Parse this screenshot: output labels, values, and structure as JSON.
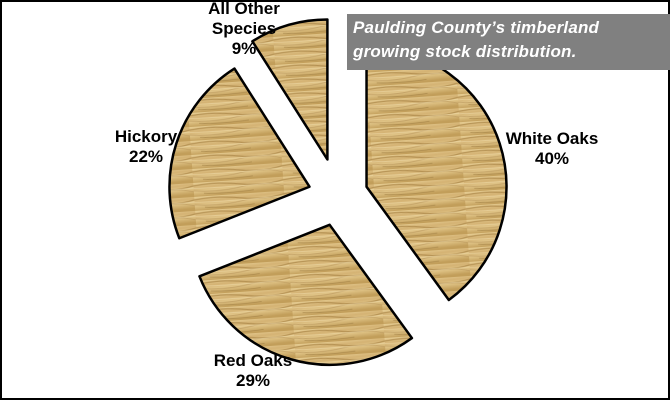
{
  "chart_data": {
    "type": "pie",
    "title": "Paulding County’s timberland growing stock distribution.",
    "title_lines": [
      "Paulding County’s timberland",
      "growing stock distribution."
    ],
    "slices": [
      {
        "label": "White Oaks",
        "value": 40,
        "pct": "40%"
      },
      {
        "label": "Red Oaks",
        "value": 29,
        "pct": "29%"
      },
      {
        "label": "Hickory",
        "value": 22,
        "pct": "22%"
      },
      {
        "label": "All Other Species",
        "label_lines": [
          "All Other",
          "Species"
        ],
        "value": 9,
        "pct": "9%"
      }
    ],
    "exploded": true,
    "fill": "wood-texture",
    "colors": {
      "wood_light": "#e3c98f",
      "wood_mid": "#c9a560",
      "wood_dark": "#9a7838",
      "edge": "#000000",
      "title_bg": "#808080",
      "title_text": "#ffffff"
    }
  }
}
